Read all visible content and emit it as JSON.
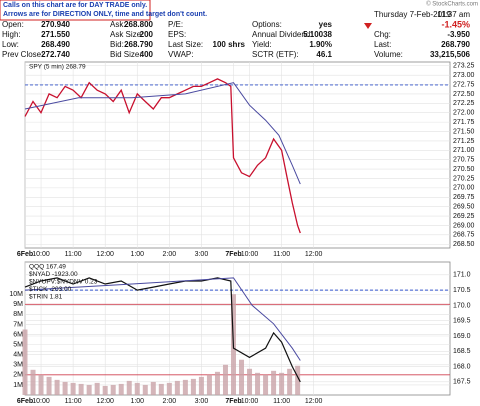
{
  "notice": [
    "Calls on this chart are for DAY TRADE only.",
    "Arrows are for DIRECTION ONLY, time and target don't count."
  ],
  "copyright": "© StockCharts.com",
  "quote_rows": [
    [
      [
        "Open:",
        "270.940"
      ],
      [
        "Ask:",
        "268.800"
      ],
      [
        "P/E:"
      ],
      [
        "Options:",
        "yes"
      ]
    ],
    [
      [
        "High:",
        "271.550"
      ],
      [
        "Ask Size:",
        "200"
      ],
      [
        "EPS:"
      ],
      [
        "Annual Dividend:",
        "5.10038"
      ]
    ],
    [
      [
        "Low:",
        "268.490"
      ],
      [
        "Bid:",
        "268.790"
      ],
      [
        "Last Size:",
        "100 shrs"
      ],
      [
        "Yield:",
        "1.90%"
      ]
    ],
    [
      [
        "Prev Close:",
        "272.740"
      ],
      [
        "Bid Size:",
        "400"
      ],
      [
        "VWAP:"
      ],
      [
        "SCTR (ETF):",
        "46.1"
      ]
    ]
  ],
  "quote_side": {
    "date": "Thursday 7-Feb-2019",
    "time": "11:37 am",
    "change_pct": "-1.45%",
    "rows": [
      [
        "Chg:",
        "-3.950"
      ],
      [
        "Last:",
        "268.790"
      ],
      [
        "Volume:",
        "33,215,506"
      ]
    ]
  },
  "chart_data": [
    {
      "type": "line",
      "legend_labels": [
        "SPY (5 min) 268.79"
      ],
      "xlim": [
        0,
        159
      ],
      "xticks": [
        {
          "value": 0,
          "label": "6Feb"
        },
        {
          "value": 6,
          "label": "10:00"
        },
        {
          "value": 18,
          "label": "11:00"
        },
        {
          "value": 30,
          "label": "12:00"
        },
        {
          "value": 42,
          "label": "1:00"
        },
        {
          "value": 54,
          "label": "2:00"
        },
        {
          "value": 66,
          "label": "3:00"
        },
        {
          "value": 78,
          "label": "7Feb"
        },
        {
          "value": 84,
          "label": "10:00"
        },
        {
          "value": 96,
          "label": "11:00"
        },
        {
          "value": 108,
          "label": "12:00"
        }
      ],
      "ylim": [
        268.4,
        273.35
      ],
      "yaxis_side": "right",
      "yticks": [
        {
          "value": 268.5,
          "label": "268.50"
        },
        {
          "value": 268.75,
          "label": "268.75"
        },
        {
          "value": 269,
          "label": "269.00"
        },
        {
          "value": 269.25,
          "label": "269.25"
        },
        {
          "value": 269.5,
          "label": "269.50"
        },
        {
          "value": 269.75,
          "label": "269.75"
        },
        {
          "value": 270,
          "label": "270.00"
        },
        {
          "value": 270.25,
          "label": "270.25"
        },
        {
          "value": 270.5,
          "label": "270.50"
        },
        {
          "value": 270.75,
          "label": "270.75"
        },
        {
          "value": 271,
          "label": "271.00"
        },
        {
          "value": 271.25,
          "label": "271.25"
        },
        {
          "value": 271.5,
          "label": "271.50"
        },
        {
          "value": 271.75,
          "label": "271.75"
        },
        {
          "value": 272,
          "label": "272.00"
        },
        {
          "value": 272.25,
          "label": "272.25"
        },
        {
          "value": 272.5,
          "label": "272.50"
        },
        {
          "value": 272.75,
          "label": "272.75"
        },
        {
          "value": 273,
          "label": "273.00"
        },
        {
          "value": 273.25,
          "label": "273.25"
        }
      ],
      "grid": true,
      "reference_lines": [
        {
          "value": 272.74,
          "color": "#3355cc",
          "dashed": true
        }
      ],
      "series": [
        {
          "color": "#c8102e",
          "width": 1.3,
          "x": [
            0,
            3,
            6,
            9,
            12,
            15,
            18,
            21,
            24,
            27,
            30,
            33,
            36,
            39,
            42,
            45,
            48,
            51,
            54,
            57,
            60,
            63,
            66,
            69,
            72,
            75,
            77,
            78,
            81,
            84,
            87,
            90,
            93,
            96,
            98,
            100,
            102,
            103
          ],
          "values": [
            271.9,
            272.3,
            272.0,
            272.5,
            272.4,
            272.7,
            272.6,
            272.4,
            272.8,
            272.6,
            272.5,
            272.3,
            272.6,
            272.0,
            272.5,
            272.3,
            272.1,
            272.4,
            272.4,
            272.5,
            272.6,
            272.7,
            272.7,
            272.8,
            272.9,
            272.8,
            272.7,
            270.8,
            270.4,
            270.3,
            270.6,
            270.8,
            271.3,
            271.0,
            270.3,
            269.6,
            269.0,
            268.8
          ]
        },
        {
          "color": "#4a4aa0",
          "width": 1,
          "x": [
            0,
            20,
            40,
            60,
            78,
            84,
            90,
            95,
            100,
            103
          ],
          "values": [
            272.1,
            272.4,
            272.4,
            272.5,
            272.8,
            272.2,
            271.8,
            271.4,
            270.6,
            270.1
          ]
        }
      ]
    },
    {
      "type": "line",
      "legend_labels": [
        "QQQ 167.49",
        "$NYAD -1923.00",
        "$NYUPV:$NYDNV 0.23",
        "$TICK -203.00",
        "$TRIN 1.81"
      ],
      "xlim": [
        0,
        159
      ],
      "xticks": [
        {
          "value": 0,
          "label": "6Feb"
        },
        {
          "value": 6,
          "label": "10:00"
        },
        {
          "value": 18,
          "label": "11:00"
        },
        {
          "value": 30,
          "label": "12:00"
        },
        {
          "value": 42,
          "label": "1:00"
        },
        {
          "value": 54,
          "label": "2:00"
        },
        {
          "value": 66,
          "label": "3:00"
        },
        {
          "value": 78,
          "label": "7Feb"
        },
        {
          "value": 84,
          "label": "10:00"
        },
        {
          "value": 96,
          "label": "11:00"
        },
        {
          "value": 108,
          "label": "12:00"
        }
      ],
      "ylim": [
        0,
        13.2
      ],
      "yaxis_side": "left",
      "yticks": [
        {
          "value": 1,
          "label": "1M"
        },
        {
          "value": 2,
          "label": "2M"
        },
        {
          "value": 3,
          "label": "3M"
        },
        {
          "value": 4,
          "label": "4M"
        },
        {
          "value": 5,
          "label": "5M"
        },
        {
          "value": 6,
          "label": "6M"
        },
        {
          "value": 7,
          "label": "7M"
        },
        {
          "value": 8,
          "label": "8M"
        },
        {
          "value": 9,
          "label": "9M"
        },
        {
          "value": 10,
          "label": "10M"
        }
      ],
      "y2lim": [
        167.07,
        171.42
      ],
      "y2ticks": [
        {
          "value": 167.5,
          "label": "167.5"
        },
        {
          "value": 168,
          "label": "168.0"
        },
        {
          "value": 168.5,
          "label": "168.5"
        },
        {
          "value": 169,
          "label": "169.0"
        },
        {
          "value": 169.5,
          "label": "169.5"
        },
        {
          "value": 170,
          "label": "170.0"
        },
        {
          "value": 170.5,
          "label": "170.5"
        },
        {
          "value": 171,
          "label": "171.0"
        }
      ],
      "grid": true,
      "reference_lines": [
        {
          "value": 9,
          "color": "#d04050"
        },
        {
          "value": 2,
          "color": "#d04050"
        },
        {
          "value": 170.5,
          "axis": "y2",
          "color": "#3355cc",
          "dashed": true
        }
      ],
      "series": [
        {
          "kind": "bar",
          "color": "#c9a3a8",
          "x": [
            0,
            3,
            6,
            9,
            12,
            15,
            18,
            21,
            24,
            27,
            30,
            33,
            36,
            39,
            42,
            45,
            48,
            51,
            54,
            57,
            60,
            63,
            66,
            69,
            72,
            75,
            78,
            81,
            84,
            87,
            90,
            93,
            96,
            99,
            102
          ],
          "values": [
            6.5,
            2.5,
            2.0,
            1.8,
            1.5,
            1.3,
            1.2,
            1.1,
            1.0,
            1.2,
            0.9,
            1.0,
            1.1,
            1.4,
            1.2,
            1.0,
            1.3,
            1.1,
            1.2,
            1.4,
            1.5,
            1.6,
            1.8,
            2.0,
            2.3,
            3.0,
            10.0,
            3.5,
            2.6,
            2.2,
            2.0,
            2.4,
            2.2,
            2.6,
            2.9
          ]
        },
        {
          "axis": "y2",
          "color": "#111111",
          "width": 1.2,
          "x": [
            0,
            6,
            12,
            18,
            24,
            30,
            36,
            42,
            48,
            54,
            60,
            66,
            72,
            77,
            78,
            84,
            90,
            93,
            96,
            100,
            103
          ],
          "values": [
            170.6,
            170.8,
            170.9,
            170.7,
            170.9,
            170.7,
            170.8,
            170.5,
            170.6,
            170.7,
            170.8,
            170.8,
            170.9,
            170.8,
            168.6,
            168.3,
            168.6,
            169.1,
            168.8,
            168.0,
            167.5
          ]
        },
        {
          "axis": "y2",
          "color": "#4a4aa0",
          "width": 1,
          "x": [
            0,
            40,
            78,
            85,
            93,
            100,
            103
          ],
          "values": [
            170.5,
            170.7,
            170.9,
            170.0,
            169.4,
            168.6,
            168.2
          ]
        }
      ]
    }
  ]
}
